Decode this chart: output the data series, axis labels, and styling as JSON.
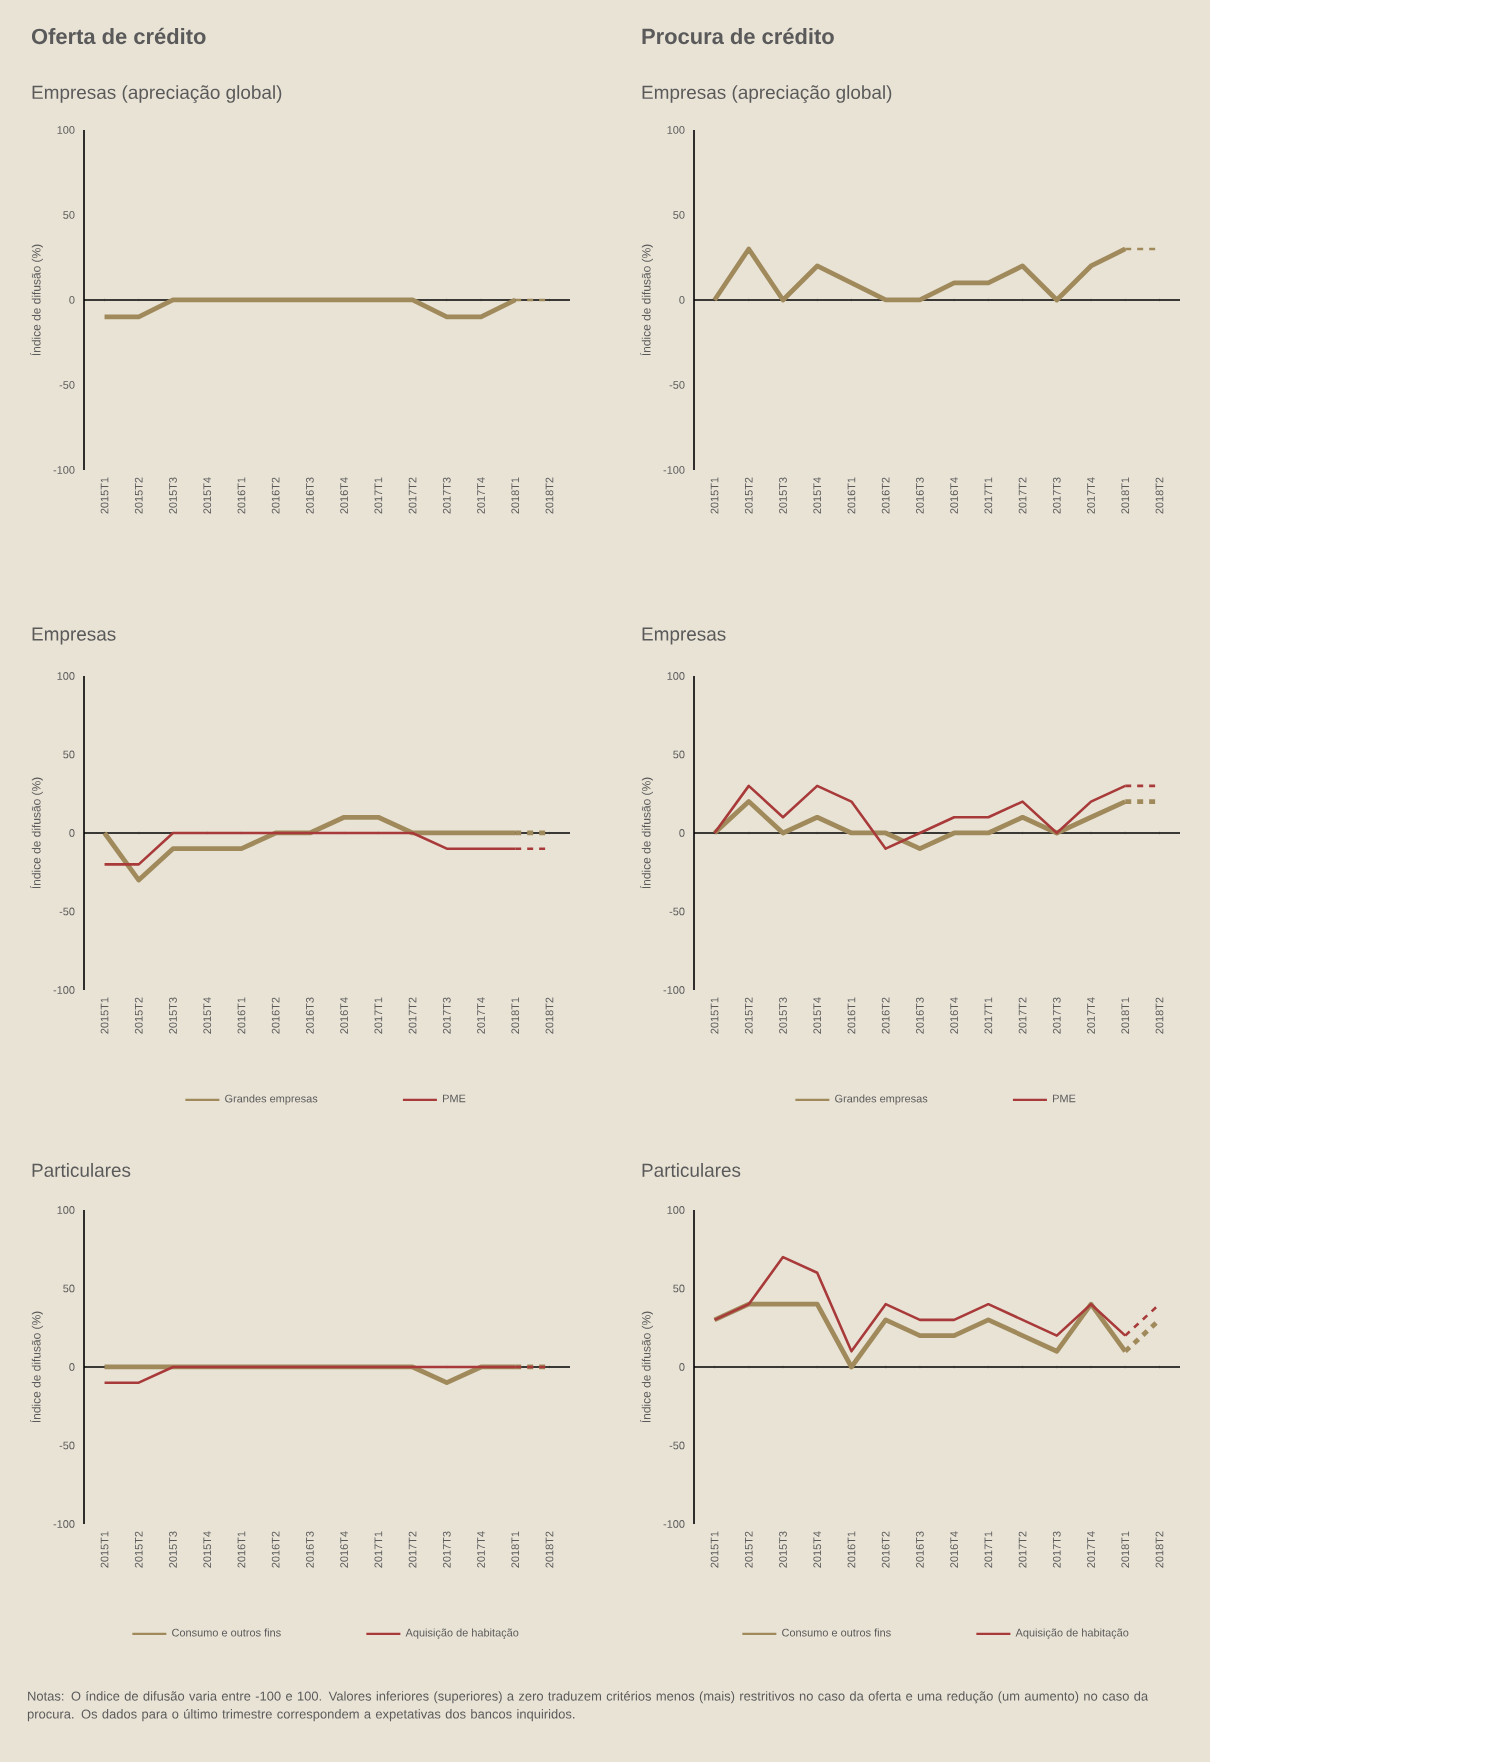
{
  "chart_data": [
    {
      "type": "line",
      "title": "Oferta de crédito",
      "subtitle": "Empresas (apreciação global)",
      "ylabel": "Índice de difusão (%)",
      "categories": [
        "2015T1",
        "2015T2",
        "2015T3",
        "2015T4",
        "2016T1",
        "2016T2",
        "2016T3",
        "2016T4",
        "2017T1",
        "2017T2",
        "2017T3",
        "2017T4",
        "2018T1",
        "2018T2"
      ],
      "ylim": [
        -100,
        100
      ],
      "yticks": [
        -100,
        -50,
        0,
        50,
        100
      ],
      "marker": "none",
      "line_style": "solid",
      "series": [
        {
          "color": "#a08a5c",
          "values": [
            -10,
            -10,
            0,
            0,
            0,
            0,
            0,
            0,
            0,
            0,
            -10,
            -10,
            0,
            null
          ]
        },
        {
          "color": "#a08a5c",
          "line_style": "dashed",
          "values": [
            null,
            null,
            null,
            null,
            null,
            null,
            null,
            null,
            null,
            null,
            null,
            null,
            0,
            0
          ]
        }
      ]
    },
    {
      "type": "line",
      "title": "Procura de crédito",
      "subtitle": "Empresas (apreciação global)",
      "ylabel": "Índice de difusão (%)",
      "categories": [
        "2015T1",
        "2015T2",
        "2015T3",
        "2015T4",
        "2016T1",
        "2016T2",
        "2016T3",
        "2016T4",
        "2017T1",
        "2017T2",
        "2017T3",
        "2017T4",
        "2018T1",
        "2018T2"
      ],
      "ylim": [
        -100,
        100
      ],
      "yticks": [
        -100,
        -50,
        0,
        50,
        100
      ],
      "marker": "none",
      "line_style": "solid",
      "series": [
        {
          "color": "#a08a5c",
          "values": [
            0,
            30,
            0,
            20,
            10,
            0,
            0,
            10,
            10,
            20,
            0,
            20,
            30,
            null
          ]
        },
        {
          "color": "#a08a5c",
          "line_style": "dashed",
          "values": [
            null,
            null,
            null,
            null,
            null,
            null,
            null,
            null,
            null,
            null,
            null,
            null,
            30,
            30
          ]
        }
      ]
    },
    {
      "type": "line",
      "title": "Empresas",
      "ylabel": "Índice de difusão (%)",
      "categories": [
        "2015T1",
        "2015T2",
        "2015T3",
        "2015T4",
        "2016T1",
        "2016T2",
        "2016T3",
        "2016T4",
        "2017T1",
        "2017T2",
        "2017T3",
        "2017T4",
        "2018T1",
        "2018T2"
      ],
      "ylim": [
        -100,
        100
      ],
      "yticks": [
        -100,
        -50,
        0,
        50,
        100
      ],
      "marker": "none",
      "line_style": "solid",
      "legend": "bottom",
      "series": [
        {
          "name": "Grandes empresas",
          "color": "#a08a5c",
          "values": [
            0,
            -30,
            -10,
            -10,
            -10,
            0,
            0,
            10,
            10,
            0,
            0,
            0,
            0,
            null
          ]
        },
        {
          "name": "PME",
          "color": "#a83a3a",
          "values": [
            -20,
            -20,
            0,
            0,
            0,
            0,
            0,
            0,
            0,
            0,
            -10,
            -10,
            -10,
            null
          ]
        },
        {
          "color": "#a08a5c",
          "line_style": "dashed",
          "values": [
            null,
            null,
            null,
            null,
            null,
            null,
            null,
            null,
            null,
            null,
            null,
            null,
            0,
            0
          ]
        },
        {
          "color": "#a83a3a",
          "line_style": "dashed",
          "values": [
            null,
            null,
            null,
            null,
            null,
            null,
            null,
            null,
            null,
            null,
            null,
            null,
            -10,
            -10
          ]
        }
      ]
    },
    {
      "type": "line",
      "title": "Empresas",
      "ylabel": "Índice de difusão (%)",
      "categories": [
        "2015T1",
        "2015T2",
        "2015T3",
        "2015T4",
        "2016T1",
        "2016T2",
        "2016T3",
        "2016T4",
        "2017T1",
        "2017T2",
        "2017T3",
        "2017T4",
        "2018T1",
        "2018T2"
      ],
      "ylim": [
        -100,
        100
      ],
      "yticks": [
        -100,
        -50,
        0,
        50,
        100
      ],
      "marker": "none",
      "line_style": "solid",
      "legend": "bottom",
      "series": [
        {
          "name": "Grandes empresas",
          "color": "#a08a5c",
          "values": [
            0,
            20,
            0,
            10,
            0,
            0,
            -10,
            0,
            0,
            10,
            0,
            10,
            20,
            null
          ]
        },
        {
          "name": "PME",
          "color": "#a83a3a",
          "values": [
            0,
            30,
            10,
            30,
            20,
            -10,
            0,
            10,
            10,
            20,
            0,
            20,
            30,
            null
          ]
        },
        {
          "color": "#a08a5c",
          "line_style": "dashed",
          "values": [
            null,
            null,
            null,
            null,
            null,
            null,
            null,
            null,
            null,
            null,
            null,
            null,
            20,
            20
          ]
        },
        {
          "color": "#a83a3a",
          "line_style": "dashed",
          "values": [
            null,
            null,
            null,
            null,
            null,
            null,
            null,
            null,
            null,
            null,
            null,
            null,
            30,
            30
          ]
        }
      ]
    },
    {
      "type": "line",
      "title": "Particulares",
      "ylabel": "Índice de difusão (%)",
      "categories": [
        "2015T1",
        "2015T2",
        "2015T3",
        "2015T4",
        "2016T1",
        "2016T2",
        "2016T3",
        "2016T4",
        "2017T1",
        "2017T2",
        "2017T3",
        "2017T4",
        "2018T1",
        "2018T2"
      ],
      "ylim": [
        -100,
        100
      ],
      "yticks": [
        -100,
        -50,
        0,
        50,
        100
      ],
      "marker": "none",
      "line_style": "solid",
      "legend": "bottom",
      "series": [
        {
          "name": "Consumo e outros fins",
          "color": "#a08a5c",
          "values": [
            0,
            0,
            0,
            0,
            0,
            0,
            0,
            0,
            0,
            0,
            -10,
            0,
            0,
            null
          ]
        },
        {
          "name": "Aquisição de habitação",
          "color": "#a83a3a",
          "values": [
            -10,
            -10,
            0,
            0,
            0,
            0,
            0,
            0,
            0,
            0,
            0,
            0,
            0,
            null
          ]
        },
        {
          "color": "#a08a5c",
          "line_style": "dashed",
          "values": [
            null,
            null,
            null,
            null,
            null,
            null,
            null,
            null,
            null,
            null,
            null,
            null,
            0,
            0
          ]
        },
        {
          "color": "#a83a3a",
          "line_style": "dashed",
          "values": [
            null,
            null,
            null,
            null,
            null,
            null,
            null,
            null,
            null,
            null,
            null,
            null,
            0,
            0
          ]
        }
      ]
    },
    {
      "type": "line",
      "title": "Particulares",
      "ylabel": "Índice de difusão (%)",
      "categories": [
        "2015T1",
        "2015T2",
        "2015T3",
        "2015T4",
        "2016T1",
        "2016T2",
        "2016T3",
        "2016T4",
        "2017T1",
        "2017T2",
        "2017T3",
        "2017T4",
        "2018T1",
        "2018T2"
      ],
      "ylim": [
        -100,
        100
      ],
      "yticks": [
        -100,
        -50,
        0,
        50,
        100
      ],
      "marker": "none",
      "line_style": "solid",
      "legend": "bottom",
      "annotations": [
        "Notas: O índice de difusão varia entre -100 e 100. Valores inferiores (superiores) a zero traduzem critérios menos (mais) restritivos no caso da oferta e uma redução (um aumento) no caso da procura. Os dados para o último trimestre correspondem a expetativas dos bancos inquiridos."
      ],
      "series": [
        {
          "name": "Consumo e outros fins",
          "color": "#a08a5c",
          "values": [
            30,
            40,
            40,
            40,
            0,
            30,
            20,
            20,
            30,
            20,
            10,
            40,
            10,
            null
          ]
        },
        {
          "name": "Aquisição de habitação",
          "color": "#a83a3a",
          "values": [
            30,
            40,
            70,
            60,
            10,
            40,
            30,
            30,
            40,
            30,
            20,
            40,
            20,
            null
          ]
        },
        {
          "color": "#a08a5c",
          "line_style": "dashed",
          "values": [
            null,
            null,
            null,
            null,
            null,
            null,
            null,
            null,
            null,
            null,
            null,
            null,
            10,
            30
          ]
        },
        {
          "color": "#a83a3a",
          "line_style": "dashed",
          "values": [
            null,
            null,
            null,
            null,
            null,
            null,
            null,
            null,
            null,
            null,
            null,
            null,
            20,
            40
          ]
        }
      ]
    }
  ]
}
